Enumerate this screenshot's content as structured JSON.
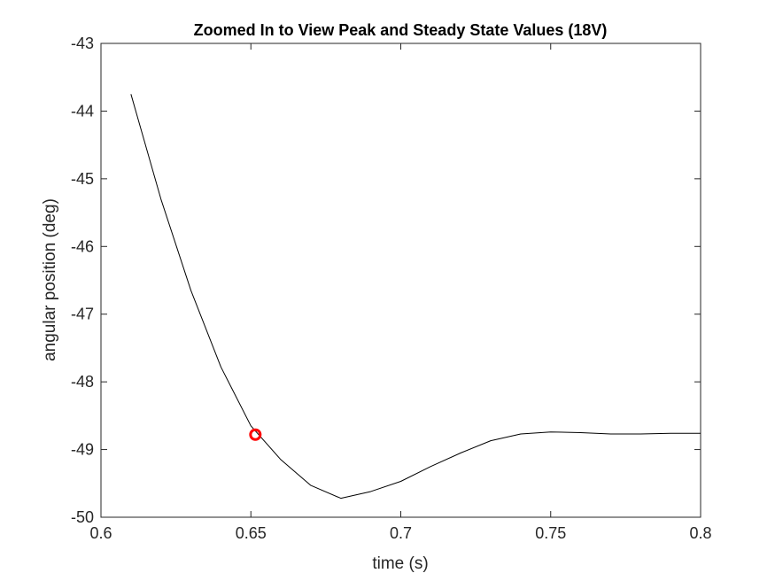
{
  "chart_data": {
    "type": "line",
    "title": "Zoomed In to View Peak and Steady State Values (18V)",
    "xlabel": "time (s)",
    "ylabel": "angular position (deg)",
    "xlim": [
      0.6,
      0.8
    ],
    "ylim": [
      -50,
      -43
    ],
    "xticks": [
      0.6,
      0.65,
      0.7,
      0.75,
      0.8
    ],
    "xtick_labels": [
      "0.6",
      "0.65",
      "0.7",
      "0.75",
      "0.8"
    ],
    "yticks": [
      -50,
      -49,
      -48,
      -47,
      -46,
      -45,
      -44,
      -43
    ],
    "ytick_labels": [
      "-50",
      "-49",
      "-48",
      "-47",
      "-46",
      "-45",
      "-44",
      "-43"
    ],
    "grid": false,
    "series": [
      {
        "color": "#000000",
        "x": [
          0.61,
          0.62,
          0.63,
          0.64,
          0.65,
          0.66,
          0.67,
          0.68,
          0.69,
          0.7,
          0.71,
          0.72,
          0.73,
          0.74,
          0.75,
          0.76,
          0.77,
          0.78,
          0.79,
          0.8
        ],
        "y": [
          -43.75,
          -45.3,
          -46.65,
          -47.78,
          -48.65,
          -49.15,
          -49.53,
          -49.72,
          -49.62,
          -49.47,
          -49.25,
          -49.05,
          -48.87,
          -48.77,
          -48.74,
          -48.75,
          -48.77,
          -48.77,
          -48.76,
          -48.76
        ]
      }
    ],
    "markers": [
      {
        "x": 0.6515,
        "y": -48.78,
        "color": "#ff0000",
        "shape": "circle"
      }
    ]
  }
}
